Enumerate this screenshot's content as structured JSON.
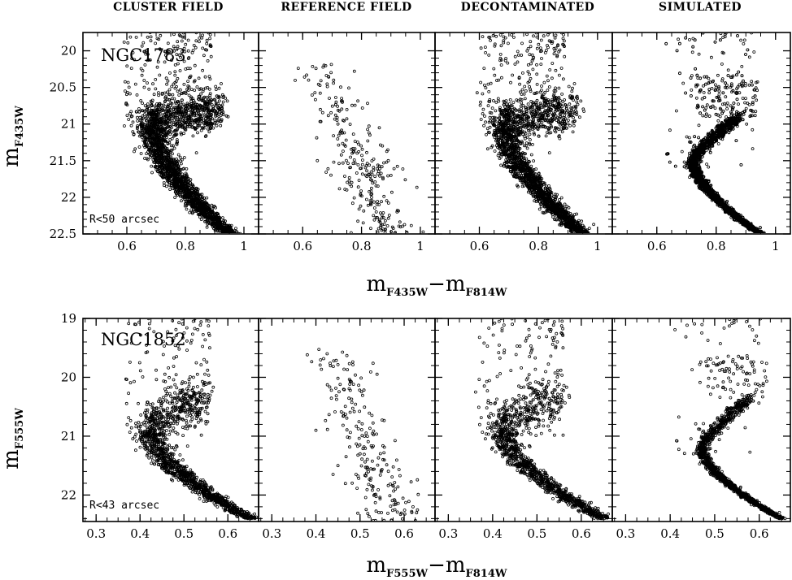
{
  "column_titles": [
    "CLUSTER FIELD",
    "REFERENCE FIELD",
    "DECONTAMINATED",
    "SIMULATED"
  ],
  "rows": [
    {
      "cluster": "NGC1783",
      "radius_label": "R<50 arcsec",
      "ylabel_main": "m",
      "ylabel_sub": "F435W",
      "xlabel_main_1": "m",
      "xlabel_sub_1": "F435W",
      "xlabel_dash": "−",
      "xlabel_main_2": "m",
      "xlabel_sub_2": "F814W"
    },
    {
      "cluster": "NGC1852",
      "radius_label": "R<43 arcsec",
      "ylabel_main": "m",
      "ylabel_sub": "F555W",
      "xlabel_main_1": "m",
      "xlabel_sub_1": "F555W",
      "xlabel_dash": "−",
      "xlabel_main_2": "m",
      "xlabel_sub_2": "F814W"
    }
  ],
  "chart_data": [
    {
      "type": "scatter",
      "title": "",
      "xlabel": "mF435W − mF814W",
      "ylabel": "mF435W",
      "xlim": [
        0.45,
        1.05
      ],
      "ylim": [
        22.5,
        19.75
      ],
      "y_inverted": true,
      "xticks": [
        0.6,
        0.8,
        1
      ],
      "xtick_labels": [
        "0.6",
        "0.8",
        "1"
      ],
      "yticks": [
        20,
        20.5,
        21,
        21.5,
        22,
        22.5
      ],
      "ytick_labels": [
        "20",
        "20.5",
        "21",
        "21.5",
        "22",
        "22.5"
      ],
      "panels": [
        {
          "name": "CLUSTER FIELD",
          "approx_points": 2600,
          "shape": "cmd",
          "turnoff_x": 0.68,
          "turnoff_y": 21.0,
          "subgiant_end": [
            0.92,
            20.8
          ],
          "ms_bottom": [
            0.95,
            22.5
          ]
        },
        {
          "name": "REFERENCE FIELD",
          "approx_points": 260,
          "shape": "field",
          "sample_points": [
            [
              0.62,
              20.4
            ],
            [
              0.72,
              21.0
            ],
            [
              0.75,
              21.9
            ],
            [
              0.85,
              22.2
            ],
            [
              0.65,
              21.5
            ],
            [
              0.9,
              21.7
            ]
          ]
        },
        {
          "name": "DECONTAMINATED",
          "approx_points": 2300,
          "shape": "cmd",
          "turnoff_x": 0.68,
          "turnoff_y": 21.0,
          "subgiant_end": [
            0.92,
            20.8
          ],
          "ms_bottom": [
            0.95,
            22.5
          ]
        },
        {
          "name": "SIMULATED",
          "approx_points": 3200,
          "shape": "sim",
          "turnoff_x": 0.72,
          "turnoff_y": 21.5,
          "subgiant_end": [
            0.88,
            20.9
          ],
          "ms_bottom": [
            0.95,
            22.5
          ]
        }
      ]
    },
    {
      "type": "scatter",
      "title": "",
      "xlabel": "mF555W − mF814W",
      "ylabel": "mF555W",
      "xlim": [
        0.27,
        0.67
      ],
      "ylim": [
        22.45,
        19.0
      ],
      "y_inverted": true,
      "xticks": [
        0.3,
        0.4,
        0.5,
        0.6
      ],
      "xtick_labels": [
        "0.3",
        "0.4",
        "0.5",
        "0.6"
      ],
      "yticks": [
        19,
        20,
        21,
        22
      ],
      "ytick_labels": [
        "19",
        "20",
        "21",
        "22"
      ],
      "panels": [
        {
          "name": "CLUSTER FIELD",
          "approx_points": 1500,
          "shape": "cmd",
          "turnoff_x": 0.42,
          "turnoff_y": 20.9,
          "subgiant_end": [
            0.55,
            20.3
          ],
          "ms_bottom": [
            0.65,
            22.4
          ]
        },
        {
          "name": "REFERENCE FIELD",
          "approx_points": 220,
          "shape": "field",
          "sample_points": [
            [
              0.4,
              20.9
            ],
            [
              0.5,
              21.3
            ],
            [
              0.58,
              21.9
            ],
            [
              0.62,
              22.2
            ],
            [
              0.45,
              21.5
            ]
          ]
        },
        {
          "name": "DECONTAMINATED",
          "approx_points": 1300,
          "shape": "cmd",
          "turnoff_x": 0.42,
          "turnoff_y": 20.9,
          "subgiant_end": [
            0.55,
            20.3
          ],
          "ms_bottom": [
            0.65,
            22.4
          ]
        },
        {
          "name": "SIMULATED",
          "approx_points": 1400,
          "shape": "sim",
          "turnoff_x": 0.47,
          "turnoff_y": 21.2,
          "subgiant_end": [
            0.58,
            20.35
          ],
          "ms_bottom": [
            0.65,
            22.4
          ]
        }
      ]
    }
  ]
}
